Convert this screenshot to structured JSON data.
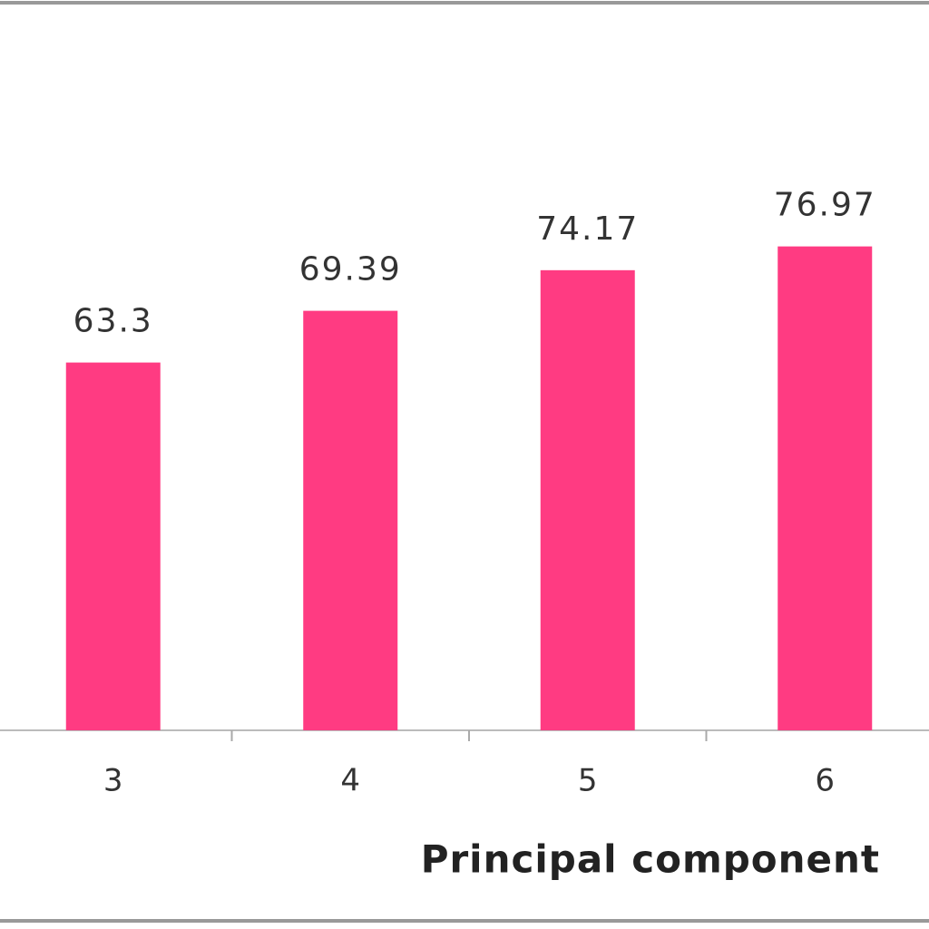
{
  "chart_data": {
    "type": "bar",
    "x_label": "Principal component",
    "categories": [
      "3",
      "4",
      "5",
      "6"
    ],
    "values": [
      63.3,
      69.39,
      74.17,
      76.97
    ],
    "color": "#ff3b82",
    "ylim": [
      20,
      100
    ],
    "grid": false,
    "value_labels_shown": true
  }
}
